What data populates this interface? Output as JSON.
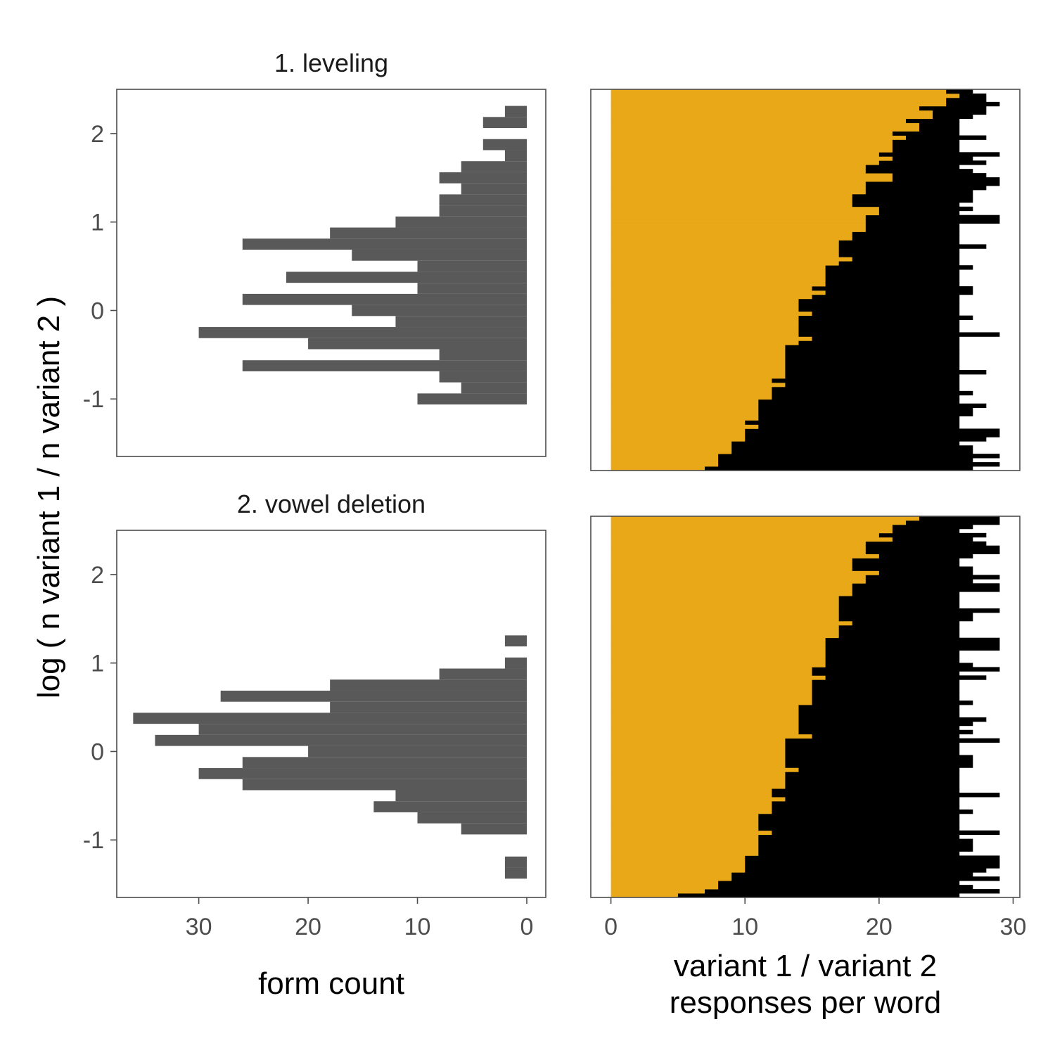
{
  "figure": {
    "ylabel": "log ( n variant 1 / n variant 2 )",
    "left_xlabel": "form count",
    "right_xlabel": [
      "variant 1 / variant 2",
      "responses per word"
    ],
    "colors": {
      "histogram_bar": "#595959",
      "variant1": "#E8A817",
      "variant2": "#000000",
      "panel_border": "#4d4d4d"
    }
  },
  "chart_data": [
    {
      "type": "bar",
      "orientation": "horizontal-histogram",
      "title": "1. leveling",
      "xlabel": "form count",
      "ylabel": "log ( n variant 1 / n variant 2 )",
      "xlim": [
        0,
        37.5
      ],
      "x_reversed": true,
      "x_ticks": [
        30,
        20,
        10,
        0
      ],
      "ylim": [
        -1.65,
        2.5
      ],
      "y_ticks": [
        -1,
        0,
        1,
        2
      ],
      "y_tick_labels": [
        "-1",
        "0",
        "1",
        "2"
      ],
      "bin_width": 0.125,
      "bins": [
        {
          "y": -1.0,
          "count": 10
        },
        {
          "y": -0.875,
          "count": 6
        },
        {
          "y": -0.75,
          "count": 8
        },
        {
          "y": -0.625,
          "count": 26
        },
        {
          "y": -0.5,
          "count": 8
        },
        {
          "y": -0.375,
          "count": 20
        },
        {
          "y": -0.25,
          "count": 30
        },
        {
          "y": -0.125,
          "count": 12
        },
        {
          "y": 0.0,
          "count": 16
        },
        {
          "y": 0.125,
          "count": 26
        },
        {
          "y": 0.25,
          "count": 10
        },
        {
          "y": 0.375,
          "count": 22
        },
        {
          "y": 0.5,
          "count": 10
        },
        {
          "y": 0.625,
          "count": 16
        },
        {
          "y": 0.75,
          "count": 26
        },
        {
          "y": 0.875,
          "count": 18
        },
        {
          "y": 1.0,
          "count": 12
        },
        {
          "y": 1.125,
          "count": 8
        },
        {
          "y": 1.25,
          "count": 8
        },
        {
          "y": 1.375,
          "count": 6
        },
        {
          "y": 1.5,
          "count": 8
        },
        {
          "y": 1.625,
          "count": 6
        },
        {
          "y": 1.75,
          "count": 2
        },
        {
          "y": 1.875,
          "count": 4
        },
        {
          "y": 2.125,
          "count": 4
        },
        {
          "y": 2.25,
          "count": 2
        }
      ]
    },
    {
      "type": "bar",
      "orientation": "stacked-horizontal",
      "xlabel": "variant 1 / variant 2 responses per word",
      "xlim": [
        -1.5,
        30.5
      ],
      "x_ticks": [
        0,
        10,
        20,
        30
      ],
      "series": [
        {
          "name": "variant 1",
          "color": "#E8A817"
        },
        {
          "name": "variant 2",
          "color": "#000000"
        }
      ],
      "variant1": [
        7,
        8,
        8,
        8,
        9,
        9,
        9,
        10,
        10,
        10,
        11,
        10,
        11,
        11,
        11,
        11,
        11,
        12,
        12,
        12,
        13,
        12,
        13,
        13,
        13,
        13,
        13,
        13,
        13,
        13,
        14,
        15,
        14,
        14,
        14,
        14,
        14,
        15,
        14,
        14,
        14,
        15,
        16,
        15,
        16,
        16,
        16,
        16,
        16,
        17,
        18,
        17,
        17,
        17,
        17,
        18,
        18,
        19,
        19,
        19,
        19,
        20,
        20,
        18,
        18,
        18,
        19,
        19,
        19,
        21,
        21,
        19,
        19,
        20,
        21,
        20,
        21,
        21,
        21,
        22,
        21,
        23,
        23,
        22,
        24,
        24,
        23,
        25,
        25,
        26,
        25
      ],
      "totals": [
        27,
        29,
        27,
        29,
        27,
        27,
        26,
        28,
        29,
        29,
        26,
        26,
        26,
        27,
        27,
        28,
        26,
        26,
        27,
        26,
        26,
        26,
        26,
        28,
        26,
        26,
        26,
        26,
        26,
        26,
        26,
        26,
        29,
        26,
        26,
        26,
        27,
        26,
        26,
        26,
        26,
        26,
        27,
        27,
        26,
        26,
        26,
        26,
        27,
        26,
        26,
        26,
        26,
        28,
        26,
        26,
        26,
        26,
        26,
        29,
        29,
        26,
        27,
        26,
        27,
        27,
        27,
        28,
        29,
        29,
        28,
        27,
        26,
        28,
        27,
        29,
        26,
        26,
        26,
        28,
        26,
        26,
        26,
        26,
        27,
        28,
        28,
        29,
        28,
        28,
        27
      ]
    },
    {
      "type": "bar",
      "orientation": "horizontal-histogram",
      "title": "2. vowel deletion",
      "xlabel": "form count",
      "ylabel": "log ( n variant 1 / n variant 2 )",
      "xlim": [
        0,
        37.5
      ],
      "x_reversed": true,
      "x_ticks": [
        30,
        20,
        10,
        0
      ],
      "x_tick_labels": [
        "30",
        "20",
        "10",
        "0"
      ],
      "ylim": [
        -1.65,
        2.5
      ],
      "y_ticks": [
        -1,
        0,
        1,
        2
      ],
      "y_tick_labels": [
        "-1",
        "0",
        "1",
        "2"
      ],
      "bin_width": 0.125,
      "bins": [
        {
          "y": -1.375,
          "count": 2
        },
        {
          "y": -1.25,
          "count": 2
        },
        {
          "y": -0.875,
          "count": 6
        },
        {
          "y": -0.75,
          "count": 10
        },
        {
          "y": -0.625,
          "count": 14
        },
        {
          "y": -0.5,
          "count": 12
        },
        {
          "y": -0.375,
          "count": 26
        },
        {
          "y": -0.25,
          "count": 30
        },
        {
          "y": -0.125,
          "count": 26
        },
        {
          "y": 0.0,
          "count": 20
        },
        {
          "y": 0.125,
          "count": 34
        },
        {
          "y": 0.25,
          "count": 30
        },
        {
          "y": 0.375,
          "count": 36
        },
        {
          "y": 0.5,
          "count": 18
        },
        {
          "y": 0.625,
          "count": 28
        },
        {
          "y": 0.75,
          "count": 18
        },
        {
          "y": 0.875,
          "count": 8
        },
        {
          "y": 1.0,
          "count": 2
        },
        {
          "y": 1.25,
          "count": 2
        }
      ]
    },
    {
      "type": "bar",
      "orientation": "stacked-horizontal",
      "xlabel": "variant 1 / variant 2 responses per word",
      "xlim": [
        -1.5,
        30.5
      ],
      "x_ticks": [
        0,
        10,
        20,
        30
      ],
      "x_tick_labels": [
        "0",
        "10",
        "20",
        "30"
      ],
      "series": [
        {
          "name": "variant 1",
          "color": "#E8A817"
        },
        {
          "name": "variant 2",
          "color": "#000000"
        }
      ],
      "variant1": [
        5,
        7,
        8,
        8,
        9,
        9,
        10,
        10,
        10,
        10,
        11,
        11,
        11,
        11,
        11,
        12,
        11,
        11,
        11,
        11,
        12,
        12,
        12,
        13,
        12,
        12,
        13,
        13,
        13,
        13,
        14,
        13,
        13,
        13,
        13,
        13,
        13,
        13,
        15,
        14,
        14,
        14,
        14,
        14,
        14,
        14,
        15,
        15,
        15,
        15,
        15,
        15,
        16,
        15,
        15,
        16,
        16,
        16,
        16,
        16,
        16,
        16,
        17,
        17,
        17,
        18,
        17,
        17,
        17,
        17,
        17,
        17,
        18,
        18,
        18,
        19,
        19,
        20,
        18,
        18,
        18,
        20,
        19,
        19,
        19,
        21,
        20,
        21,
        21,
        22,
        23
      ],
      "totals": [
        26,
        29,
        27,
        26,
        29,
        27,
        28,
        29,
        29,
        29,
        26,
        27,
        27,
        27,
        26,
        29,
        26,
        26,
        26,
        26,
        27,
        26,
        26,
        26,
        29,
        26,
        26,
        26,
        26,
        26,
        26,
        27,
        27,
        27,
        26,
        26,
        26,
        29,
        26,
        27,
        26,
        27,
        28,
        26,
        26,
        26,
        27,
        26,
        26,
        26,
        26,
        26,
        28,
        26,
        29,
        27,
        26,
        26,
        26,
        29,
        29,
        29,
        26,
        26,
        26,
        26,
        27,
        27,
        29,
        26,
        26,
        26,
        26,
        29,
        29,
        27,
        29,
        27,
        27,
        26,
        26,
        27,
        29,
        29,
        28,
        27,
        28,
        26,
        27,
        29,
        29
      ]
    }
  ]
}
